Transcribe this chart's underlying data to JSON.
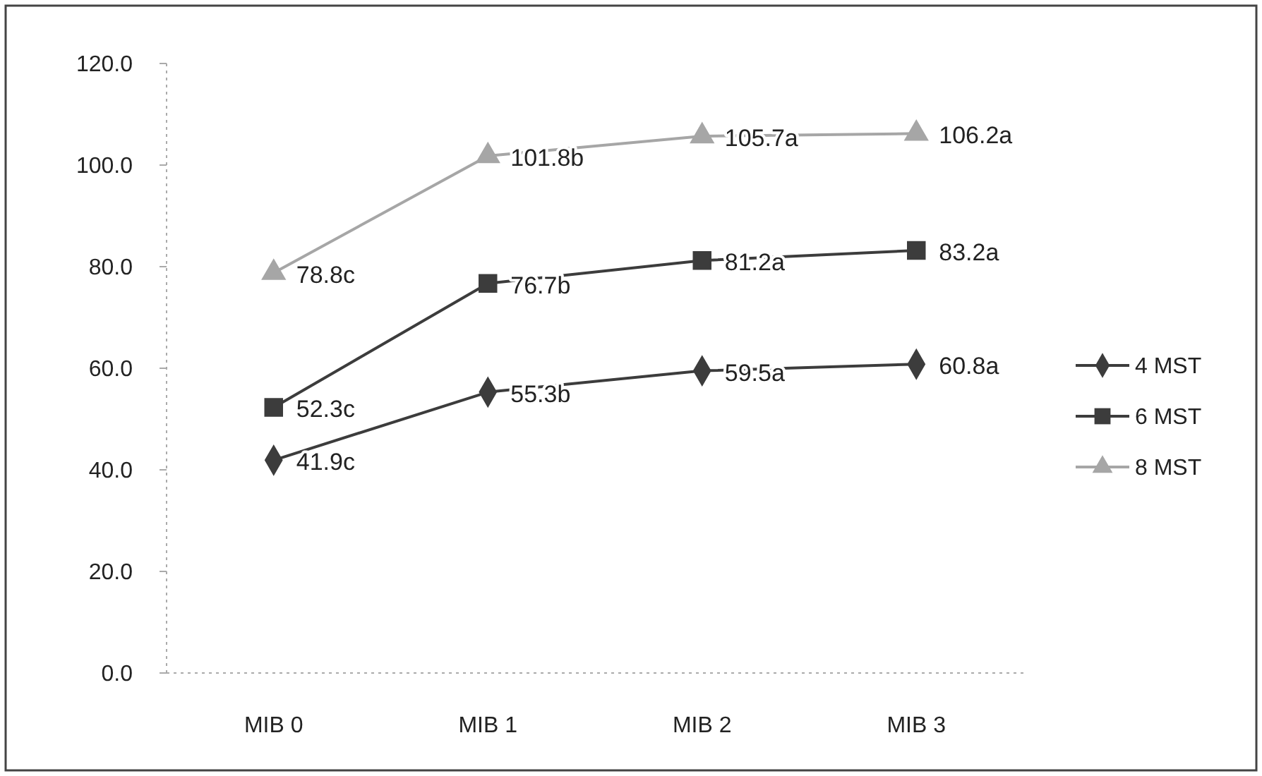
{
  "chart_data": {
    "type": "line",
    "categories": [
      "MIB 0",
      "MIB 1",
      "MIB 2",
      "MIB 3"
    ],
    "ylim": [
      0,
      120
    ],
    "yticks": [
      {
        "value": 0,
        "label": "0.0"
      },
      {
        "value": 20,
        "label": "20.0"
      },
      {
        "value": 40,
        "label": "40.0"
      },
      {
        "value": 60,
        "label": "60.0"
      },
      {
        "value": 80,
        "label": "80.0"
      },
      {
        "value": 100,
        "label": "100.0"
      },
      {
        "value": 120,
        "label": "120.0"
      }
    ],
    "legend": "right",
    "grid": false,
    "series": [
      {
        "name": "4 MST",
        "color": "#3c3c3c",
        "marker": "diamond",
        "values": [
          41.9,
          55.3,
          59.5,
          60.8
        ],
        "value_labels": [
          "41.9c",
          "55.3b",
          "59.5a",
          "60.8a"
        ]
      },
      {
        "name": "6 MST",
        "color": "#3c3c3c",
        "marker": "square",
        "values": [
          52.3,
          76.7,
          81.2,
          83.2
        ],
        "value_labels": [
          "52.3c",
          "76.7b",
          "81.2a",
          "83.2a"
        ]
      },
      {
        "name": "8 MST",
        "color": "#a6a6a6",
        "marker": "triangle",
        "values": [
          78.8,
          101.8,
          105.7,
          106.2
        ],
        "value_labels": [
          "78.8c",
          "101.8b",
          "105.7a",
          "106.2a"
        ]
      }
    ]
  }
}
